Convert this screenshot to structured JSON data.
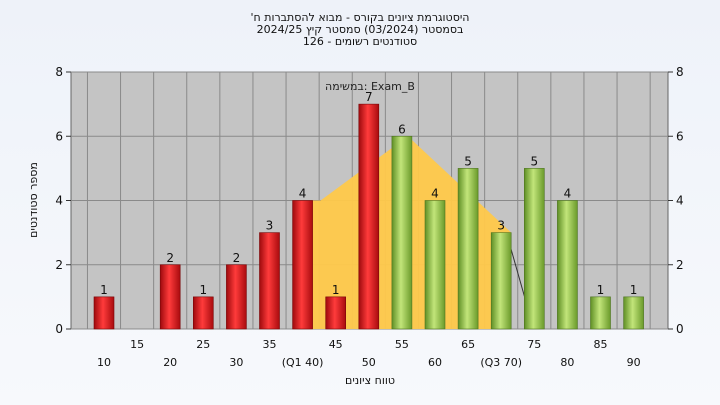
{
  "header": {
    "line1": "'היסטוגרמת ציונים בקורס - מבוא להסתברות ח",
    "line2": "בסמסטר  (03/2024)  סמסטר קיץ  2024/25",
    "line3": "סטודנטים רשומים - 126"
  },
  "chart_data": {
    "type": "bar",
    "ylabel": "מספר סטודנטים",
    "xlabel": "טווח ציונים",
    "ylim": [
      0,
      8
    ],
    "yticks": [
      0,
      2,
      4,
      6,
      8
    ],
    "annotation": "במשימה: Exam_B",
    "categories": [
      "10",
      "15",
      "20",
      "25",
      "30",
      "35",
      "40",
      "45",
      "50",
      "55",
      "60",
      "65",
      "70",
      "75",
      "80",
      "85",
      "90"
    ],
    "tick_labels": [
      "10",
      "15",
      "20",
      "25",
      "30",
      "35",
      "(Q1 40)",
      "45",
      "50",
      "55",
      "60",
      "65",
      "(Q3 70)",
      "75",
      "80",
      "85",
      "90"
    ],
    "values": [
      1,
      0,
      2,
      1,
      2,
      3,
      4,
      1,
      7,
      6,
      4,
      5,
      3,
      5,
      4,
      1,
      1
    ],
    "bar_colors": [
      "red",
      "red",
      "red",
      "red",
      "red",
      "red",
      "red",
      "red",
      "red",
      "green",
      "green",
      "green",
      "green",
      "green",
      "green",
      "green",
      "green"
    ],
    "box_range": {
      "q1": "40",
      "q3": "70",
      "peak": "55"
    },
    "colors": {
      "red": "#e0161b",
      "green": "#8fc641",
      "box": "#ffc94a",
      "plot_bg": "#c4c4c4"
    }
  }
}
